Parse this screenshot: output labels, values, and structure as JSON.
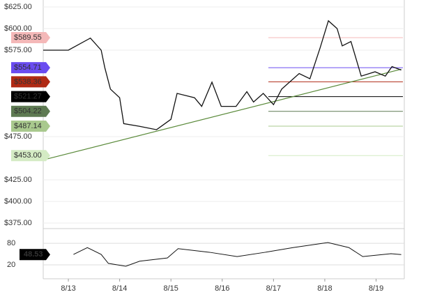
{
  "chart_data": {
    "type": "line",
    "series": [
      {
        "color": "#111111",
        "x": [
          -0.49,
          0,
          0.43,
          0.64,
          0.71,
          0.82,
          1.0,
          1.08,
          1.38,
          1.72,
          2.0,
          2.12,
          2.46,
          2.6,
          2.8,
          2.98,
          3.27,
          3.48,
          3.61,
          3.8,
          4.0,
          4.16,
          4.5,
          4.71,
          4.91,
          5.07,
          5.24,
          5.34,
          5.51,
          5.71,
          5.98,
          6.18,
          6.31,
          6.49
        ],
        "values": [
          575,
          575,
          589,
          575,
          555,
          530,
          520,
          490,
          487,
          483,
          495,
          525,
          520,
          510,
          538,
          510,
          510,
          527,
          515,
          525,
          512,
          530,
          548,
          542,
          578,
          609,
          600,
          580,
          585,
          545,
          550,
          545,
          556,
          552
        ]
      }
    ],
    "xlim": [
      -0.49,
      6.55
    ],
    "xticks": [
      {
        "value": 0,
        "label": "8/13"
      },
      {
        "value": 1,
        "label": "8/14"
      },
      {
        "value": 2,
        "label": "8/15"
      },
      {
        "value": 3,
        "label": "8/16"
      },
      {
        "value": 4,
        "label": "8/17"
      },
      {
        "value": 5,
        "label": "8/18"
      },
      {
        "value": 6,
        "label": "8/19"
      }
    ],
    "ylim": [
      375,
      625
    ],
    "yticks": [
      {
        "value": 625,
        "label": "$625.00"
      },
      {
        "value": 600,
        "label": "$600.00"
      },
      {
        "value": 575,
        "label": "$575.00"
      },
      {
        "value": 475,
        "label": "$475.00"
      },
      {
        "value": 425,
        "label": "$425.00"
      },
      {
        "value": 400,
        "label": "$400.00"
      },
      {
        "value": 375,
        "label": "$375.00"
      }
    ],
    "grid": true,
    "levels": [
      {
        "value": 589.55,
        "label": "$589.55",
        "color": "#f4b8b8",
        "text_color": "#333333"
      },
      {
        "value": 554.71,
        "label": "$554.71",
        "color": "#6a4cf0",
        "text_color": "#ffffff"
      },
      {
        "value": 538.36,
        "label": "$538.36",
        "color": "#b02a14",
        "text_color": "#222222"
      },
      {
        "value": 521.27,
        "label": "$521.27",
        "color": "#000000",
        "text_color": "#ffffff"
      },
      {
        "value": 504.22,
        "label": "$504.22",
        "color": "#5e7a52",
        "text_color": "#ffffff"
      },
      {
        "value": 487.14,
        "label": "$487.14",
        "color": "#a9c98e",
        "text_color": "#222222"
      },
      {
        "value": 453.0,
        "label": "$453.00",
        "color": "#d4ebc4",
        "text_color": "#222222"
      }
    ],
    "trendline": {
      "color": "#5a8a3a",
      "x": [
        -0.49,
        6.49
      ],
      "values": [
        448,
        553
      ]
    },
    "indicator": {
      "color": "#111111",
      "x": [
        0.1,
        0.37,
        0.64,
        0.78,
        1.12,
        1.39,
        1.93,
        2.14,
        2.75,
        3.29,
        3.84,
        4.38,
        5.06,
        5.47,
        5.74,
        6.29,
        6.49
      ],
      "values": [
        49,
        68,
        49,
        24,
        16,
        30,
        39,
        65,
        55,
        43,
        55,
        68,
        82,
        68,
        43,
        51,
        48.53
      ],
      "value_label": "48.53",
      "ylim": [
        -19,
        121
      ],
      "yticks": [
        80,
        20
      ]
    }
  }
}
